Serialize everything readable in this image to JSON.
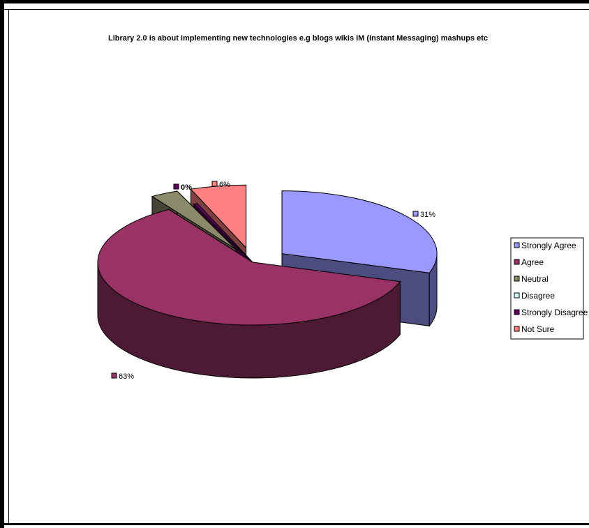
{
  "chart_data": {
    "type": "pie",
    "title": "Library 2.0 is about implementing new technologies e.g blogs wikis IM (Instant Messaging) mashups etc",
    "legend_position": "right",
    "slices": [
      {
        "name": "Strongly Agree",
        "value": 31,
        "label": "31%",
        "color": "#9999FF",
        "side_color": "#4C4C80",
        "exploded": true,
        "label_bold": false
      },
      {
        "name": "Agree",
        "value": 63,
        "label": "63%",
        "color": "#993366",
        "side_color": "#4D1A33",
        "exploded": false,
        "label_bold": false
      },
      {
        "name": "Neutral",
        "value": 3,
        "label": "",
        "color": "#8A8A6A",
        "side_color": "#454535",
        "exploded": true,
        "label_bold": false
      },
      {
        "name": "Disagree",
        "value": 0,
        "label": "",
        "color": "#CCFFFF",
        "side_color": "#668080",
        "exploded": false,
        "label_bold": false
      },
      {
        "name": "Strongly Disagree",
        "value": 0.4,
        "label": "0%",
        "color": "#660066",
        "side_color": "#330033",
        "exploded": false,
        "label_bold": true
      },
      {
        "name": "Not Sure",
        "value": 6,
        "label": "6%",
        "color": "#FF8080",
        "side_color": "#804040",
        "exploded": true,
        "label_bold": false
      }
    ]
  }
}
